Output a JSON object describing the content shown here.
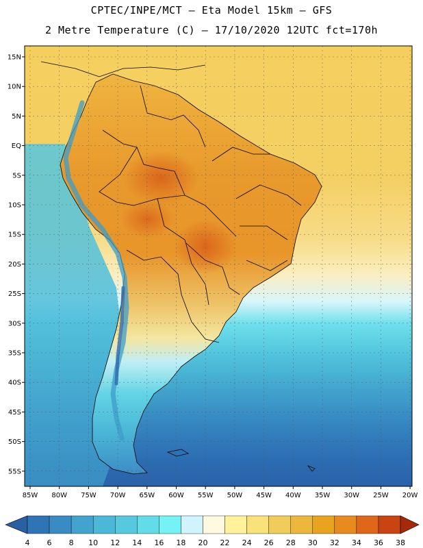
{
  "header": {
    "line1": "CPTEC/INPE/MCT –  Eta Model 15km – GFS",
    "line2": "2 Metre Temperature (C) – 17/10/2020 12UTC fct=170h"
  },
  "axes": {
    "lat_labels": [
      "15N",
      "10N",
      "5N",
      "EQ",
      "5S",
      "10S",
      "15S",
      "20S",
      "25S",
      "30S",
      "35S",
      "40S",
      "45S",
      "50S",
      "55S"
    ],
    "lon_labels": [
      "85W",
      "80W",
      "75W",
      "70W",
      "65W",
      "60W",
      "55W",
      "50W",
      "45W",
      "40W",
      "35W",
      "30W",
      "25W",
      "20W"
    ]
  },
  "colorbar": {
    "labels": [
      "4",
      "6",
      "8",
      "10",
      "12",
      "14",
      "16",
      "18",
      "20",
      "22",
      "24",
      "26",
      "28",
      "30",
      "32",
      "34",
      "36",
      "38"
    ],
    "colors": [
      "#2a5fa3",
      "#2f74b5",
      "#3a8bc4",
      "#42a3cf",
      "#4cb8d8",
      "#56c9df",
      "#62dde8",
      "#74f2f5",
      "#cff4fb",
      "#fff9e0",
      "#fff29a",
      "#f9e27a",
      "#f0cc5a",
      "#ebb83c",
      "#e8a41d",
      "#e88a1e",
      "#e0661a",
      "#c94410",
      "#a52a08"
    ]
  },
  "map": {
    "region": "South America",
    "grid": true,
    "ocean_north_color": "#f2c85a",
    "ocean_south_color": "#2e6bb0"
  }
}
